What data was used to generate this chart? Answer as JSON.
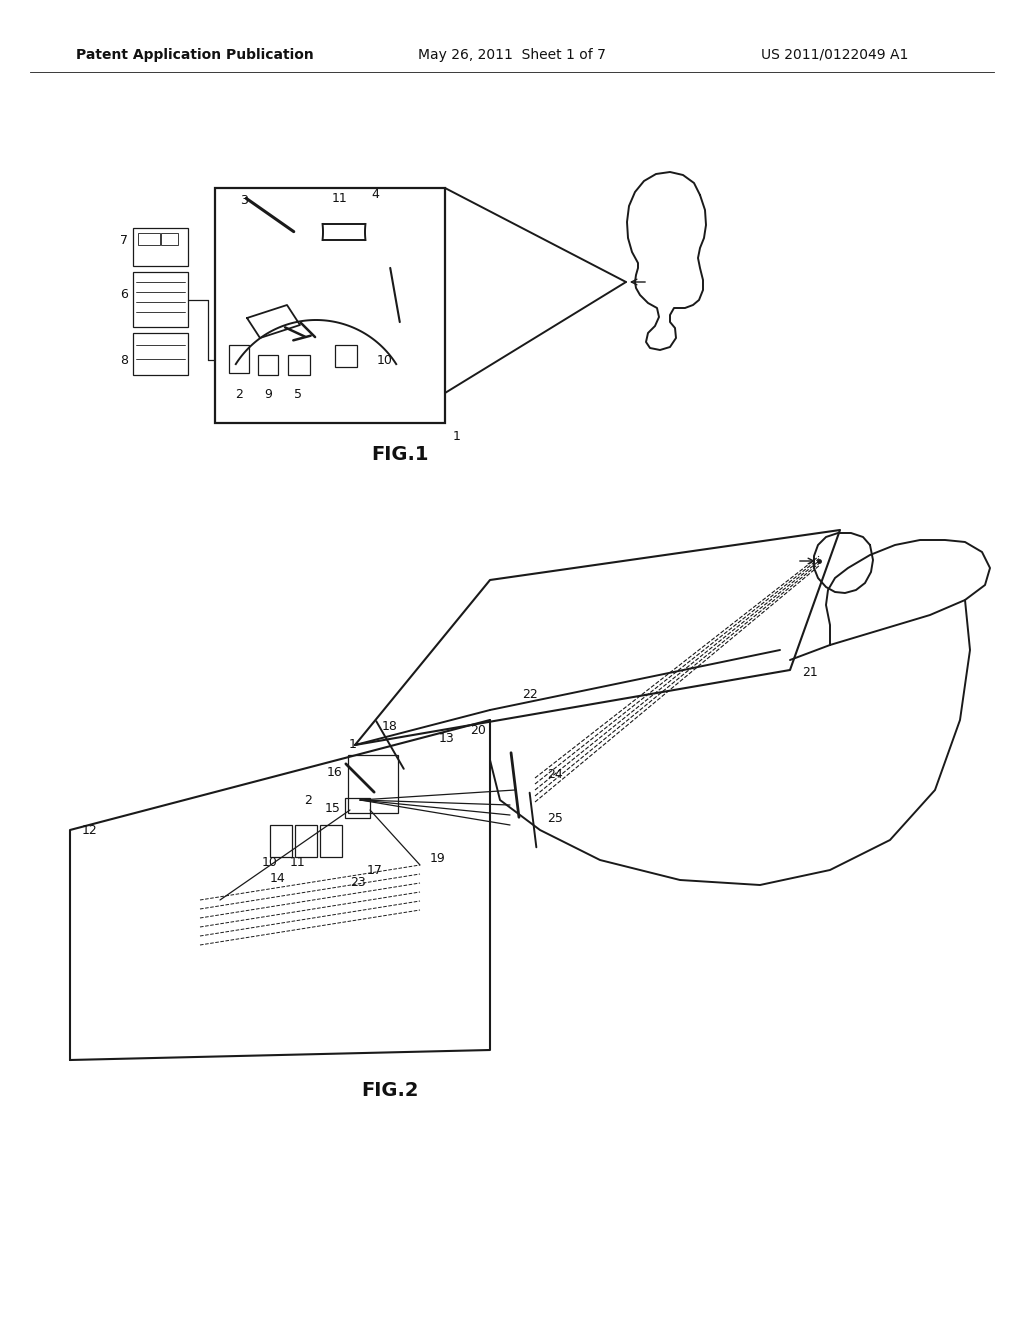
{
  "bg_color": "#ffffff",
  "text_color": "#111111",
  "header_left": "Patent Application Publication",
  "header_mid": "May 26, 2011  Sheet 1 of 7",
  "header_right": "US 2011/0122049 A1",
  "fig1_label": "FIG.1",
  "fig2_label": "FIG.2",
  "lc": "#1a1a1a"
}
